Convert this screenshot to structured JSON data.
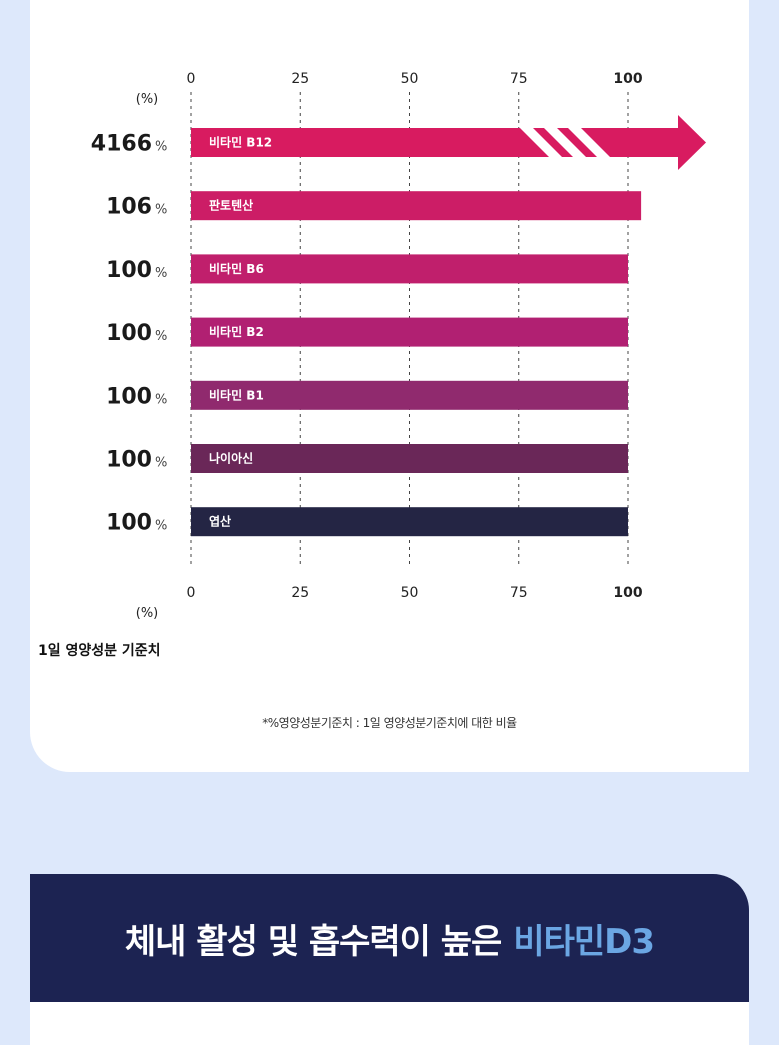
{
  "chart_data": {
    "type": "bar",
    "orientation": "horizontal",
    "xlim": [
      0,
      100
    ],
    "ticks": [
      "0",
      "25",
      "50",
      "75",
      "100"
    ],
    "unit_label": "(%)",
    "pct_sign": "%",
    "categories": [
      "비타민 B12",
      "판토텐산",
      "비타민 B6",
      "비타민 B2",
      "비타민 B1",
      "나이아신",
      "엽산"
    ],
    "values": [
      4166,
      106,
      100,
      100,
      100,
      100,
      100
    ],
    "value_labels": [
      "4166",
      "106",
      "100",
      "100",
      "100",
      "100",
      "100"
    ],
    "colors": [
      "#d81b60",
      "#cc1d66",
      "#c01f6c",
      "#b12072",
      "#902a6e",
      "#6a2758",
      "#242544"
    ],
    "broken_axis_series": "비타민 B12",
    "grid": "dashed vertical"
  },
  "chart_title": "1일 영양성분 기준치",
  "footnote": "*%영양성분기준치 : 1일 영양성분기준치에 대한 비율",
  "banner": {
    "text": "체내 활성 및 흡수력이 높은",
    "highlight": "비타민D3"
  }
}
